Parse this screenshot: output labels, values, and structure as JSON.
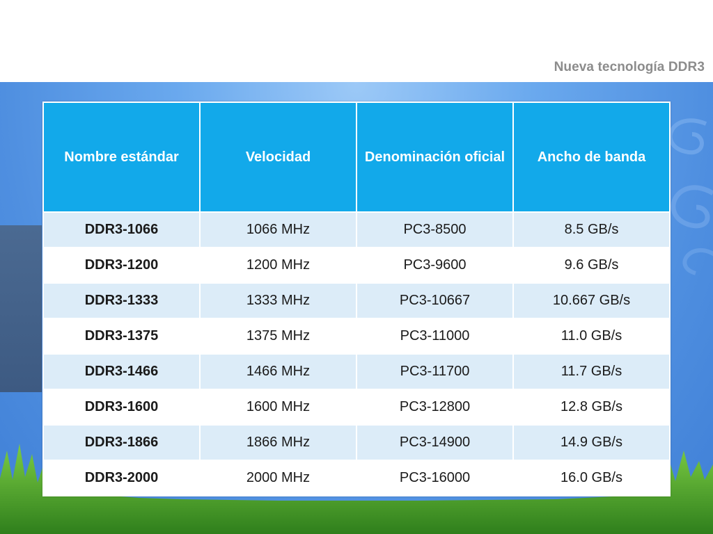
{
  "slide": {
    "title": "Nueva tecnología DDR3"
  },
  "table": {
    "headers": [
      "Nombre estándar",
      "Velocidad",
      "Denominación oficial",
      "Ancho de banda"
    ],
    "rows": [
      [
        "DDR3-1066",
        "1066 MHz",
        "PC3-8500",
        "8.5 GB/s"
      ],
      [
        "DDR3-1200",
        "1200 MHz",
        "PC3-9600",
        "9.6 GB/s"
      ],
      [
        "DDR3-1333",
        "1333 MHz",
        "PC3-10667",
        "10.667 GB/s"
      ],
      [
        "DDR3-1375",
        "1375 MHz",
        "PC3-11000",
        "11.0 GB/s"
      ],
      [
        "DDR3-1466",
        "1466 MHz",
        "PC3-11700",
        "11.7 GB/s"
      ],
      [
        "DDR3-1600",
        "1600 MHz",
        "PC3-12800",
        "12.8 GB/s"
      ],
      [
        "DDR3-1866",
        "1866 MHz",
        "PC3-14900",
        "14.9 GB/s"
      ],
      [
        "DDR3-2000",
        "2000 MHz",
        "PC3-16000",
        "16.0 GB/s"
      ]
    ]
  },
  "colors": {
    "header_fill": "#12a9ea",
    "band_row": "#dcecf8",
    "title_text": "#8c8c8c",
    "background_sky": "#4f8fe0",
    "grass": "#4aa12e"
  }
}
